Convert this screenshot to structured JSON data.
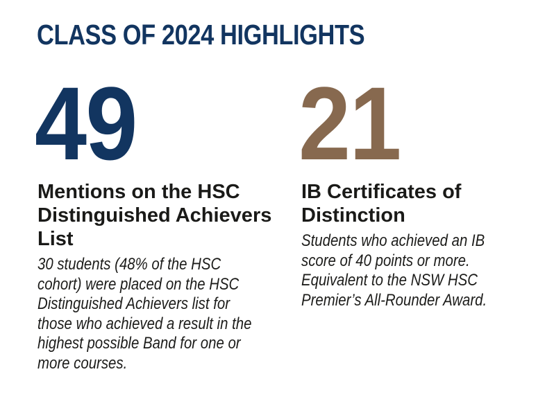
{
  "page": {
    "title": "CLASS OF 2024 HIGHLIGHTS"
  },
  "colors": {
    "navy": "#123560",
    "brown": "#87694F",
    "heading_text": "#1a1a18",
    "body_text": "#1c1c1a",
    "background": "#ffffff"
  },
  "stats": [
    {
      "value": "49",
      "accent": "#123560",
      "heading_lines": [
        "Mentions on the HSC",
        "Distinguished Achievers",
        "List"
      ],
      "body_lines": [
        "30 students (48% of the HSC",
        "cohort) were placed on the HSC",
        "Distinguished Achievers list for",
        "those who achieved a result in the",
        "highest possible Band for one or",
        "more courses."
      ]
    },
    {
      "value": "21",
      "accent": "#87694F",
      "heading_lines": [
        "IB Certificates of",
        "Distinction"
      ],
      "body_lines": [
        "Students who achieved an IB",
        "score of 40 points or more.",
        "Equivalent to the NSW HSC",
        "Premier’s All-Rounder Award."
      ]
    }
  ]
}
